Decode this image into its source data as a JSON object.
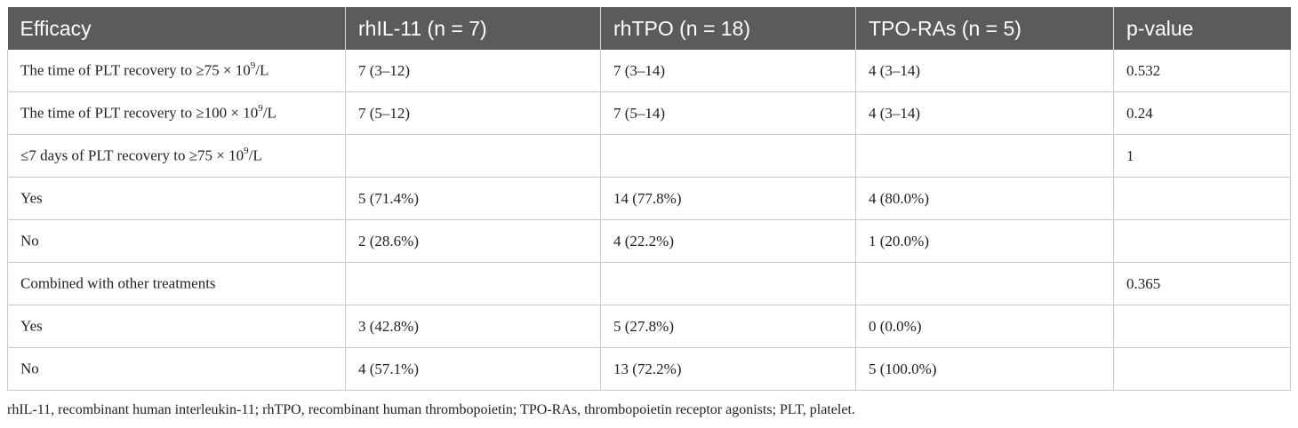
{
  "table": {
    "headers": [
      "Efficacy",
      "rhIL-11 (n = 7)",
      "rhTPO (n = 18)",
      "TPO-RAs (n = 5)",
      "p-value"
    ],
    "rows": [
      {
        "label_pre": "The time of PLT recovery to ≥75 × 10",
        "label_sup": "9",
        "label_post": "/L",
        "c2": "7 (3–12)",
        "c3": "7 (3–14)",
        "c4": "4 (3–14)",
        "c5": "0.532"
      },
      {
        "label_pre": "The time of PLT recovery to ≥100 × 10",
        "label_sup": "9",
        "label_post": "/L",
        "c2": "7 (5–12)",
        "c3": "7 (5–14)",
        "c4": "4 (3–14)",
        "c5": "0.24"
      },
      {
        "label_pre": "≤7 days of PLT recovery to ≥75 × 10",
        "label_sup": "9",
        "label_post": "/L",
        "c2": "",
        "c3": "",
        "c4": "",
        "c5": "1"
      },
      {
        "label_pre": "Yes",
        "label_sup": "",
        "label_post": "",
        "c2": "5 (71.4%)",
        "c3": "14 (77.8%)",
        "c4": "4 (80.0%)",
        "c5": ""
      },
      {
        "label_pre": "No",
        "label_sup": "",
        "label_post": "",
        "c2": "2 (28.6%)",
        "c3": "4 (22.2%)",
        "c4": "1 (20.0%)",
        "c5": ""
      },
      {
        "label_pre": "Combined with other treatments",
        "label_sup": "",
        "label_post": "",
        "c2": "",
        "c3": "",
        "c4": "",
        "c5": "0.365"
      },
      {
        "label_pre": "Yes",
        "label_sup": "",
        "label_post": "",
        "c2": "3 (42.8%)",
        "c3": "5 (27.8%)",
        "c4": "0 (0.0%)",
        "c5": ""
      },
      {
        "label_pre": "No",
        "label_sup": "",
        "label_post": "",
        "c2": "4 (57.1%)",
        "c3": "13 (72.2%)",
        "c4": "5 (100.0%)",
        "c5": ""
      }
    ]
  },
  "footnote": "rhIL-11, recombinant human interleukin-11; rhTPO, recombinant human thrombopoietin; TPO-RAs, thrombopoietin receptor agonists; PLT, platelet.",
  "colors": {
    "header_bg": "#5b5b5b",
    "header_text": "#ffffff",
    "border": "#c9c9c9"
  }
}
